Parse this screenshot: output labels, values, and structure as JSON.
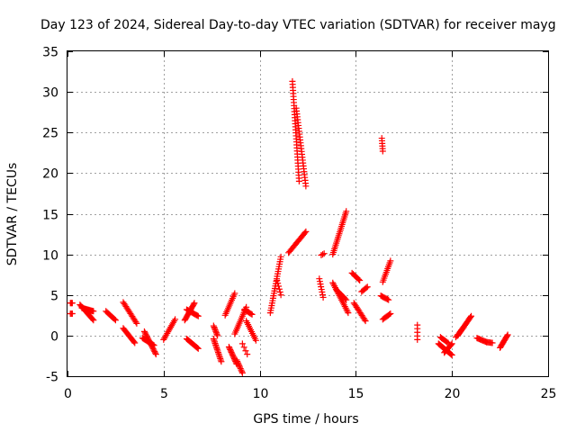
{
  "chart_data": {
    "type": "scatter",
    "title": "Day 123 of 2024, Sidereal Day-to-day VTEC variation (SDTVAR) for receiver mayg",
    "xlabel": "GPS time / hours",
    "ylabel": "SDTVAR / TECUs",
    "xlim": [
      0,
      25
    ],
    "ylim": [
      -5,
      35
    ],
    "xticks": [
      0,
      5,
      10,
      15,
      20,
      25
    ],
    "yticks": [
      -5,
      0,
      5,
      10,
      15,
      20,
      25,
      30,
      35
    ],
    "grid": true,
    "marker": "+",
    "color": "#ff0000",
    "tracks": [
      {
        "x0": 0.15,
        "x1": 0.25,
        "y0": 4.0,
        "y1": 4.0,
        "n": 4
      },
      {
        "x0": 0.15,
        "x1": 0.25,
        "y0": 2.7,
        "y1": 2.7,
        "n": 3
      },
      {
        "x0": 0.65,
        "x1": 1.35,
        "y0": 3.8,
        "y1": 1.9,
        "n": 16
      },
      {
        "x0": 0.75,
        "x1": 1.35,
        "y0": 3.4,
        "y1": 3.0,
        "n": 14
      },
      {
        "x0": 2.0,
        "x1": 2.5,
        "y0": 3.0,
        "y1": 1.9,
        "n": 10
      },
      {
        "x0": 2.9,
        "x1": 3.6,
        "y0": 4.1,
        "y1": 1.5,
        "n": 16
      },
      {
        "x0": 2.9,
        "x1": 3.5,
        "y0": 0.9,
        "y1": -0.9,
        "n": 14
      },
      {
        "x0": 4.0,
        "x1": 4.6,
        "y0": 0.5,
        "y1": -2.3,
        "n": 18
      },
      {
        "x0": 3.9,
        "x1": 4.5,
        "y0": -0.3,
        "y1": -1.2,
        "n": 14
      },
      {
        "x0": 5.0,
        "x1": 5.6,
        "y0": -0.5,
        "y1": 2.0,
        "n": 14
      },
      {
        "x0": 6.1,
        "x1": 6.6,
        "y0": 1.9,
        "y1": 4.0,
        "n": 16
      },
      {
        "x0": 6.2,
        "x1": 6.8,
        "y0": 3.2,
        "y1": 2.4,
        "n": 12
      },
      {
        "x0": 6.2,
        "x1": 6.8,
        "y0": -0.4,
        "y1": -1.6,
        "n": 14
      },
      {
        "x0": 7.6,
        "x1": 7.8,
        "y0": 1.2,
        "y1": 0.0,
        "n": 8
      },
      {
        "x0": 7.6,
        "x1": 8.0,
        "y0": -0.4,
        "y1": -3.2,
        "n": 16
      },
      {
        "x0": 8.4,
        "x1": 8.8,
        "y0": -1.4,
        "y1": -3.5,
        "n": 14
      },
      {
        "x0": 8.8,
        "x1": 9.1,
        "y0": -3.0,
        "y1": -4.6,
        "n": 10
      },
      {
        "x0": 8.2,
        "x1": 8.7,
        "y0": 2.5,
        "y1": 5.2,
        "n": 14
      },
      {
        "x0": 8.7,
        "x1": 9.3,
        "y0": 0.2,
        "y1": 3.5,
        "n": 16
      },
      {
        "x0": 9.2,
        "x1": 9.6,
        "y0": 3.2,
        "y1": 2.6,
        "n": 8
      },
      {
        "x0": 9.3,
        "x1": 9.8,
        "y0": 1.8,
        "y1": -0.6,
        "n": 12
      },
      {
        "x0": 9.1,
        "x1": 9.35,
        "y0": -1.0,
        "y1": -2.3,
        "n": 4
      },
      {
        "x0": 10.55,
        "x1": 11.1,
        "y0": 2.8,
        "y1": 9.7,
        "n": 24
      },
      {
        "x0": 10.9,
        "x1": 11.1,
        "y0": 6.8,
        "y1": 5.0,
        "n": 6
      },
      {
        "x0": 11.5,
        "x1": 12.4,
        "y0": 10.2,
        "y1": 12.8,
        "n": 18
      },
      {
        "x0": 11.7,
        "x1": 12.05,
        "y0": 31.3,
        "y1": 19.0,
        "n": 34
      },
      {
        "x0": 11.9,
        "x1": 12.4,
        "y0": 28.0,
        "y1": 18.4,
        "n": 28
      },
      {
        "x0": 13.2,
        "x1": 13.35,
        "y0": 9.9,
        "y1": 10.1,
        "n": 3
      },
      {
        "x0": 13.1,
        "x1": 13.3,
        "y0": 7.0,
        "y1": 4.7,
        "n": 8
      },
      {
        "x0": 13.8,
        "x1": 14.5,
        "y0": 10.0,
        "y1": 15.3,
        "n": 24
      },
      {
        "x0": 13.8,
        "x1": 14.6,
        "y0": 6.5,
        "y1": 2.8,
        "n": 20
      },
      {
        "x0": 14.0,
        "x1": 14.5,
        "y0": 5.6,
        "y1": 4.4,
        "n": 10
      },
      {
        "x0": 14.8,
        "x1": 15.2,
        "y0": 7.7,
        "y1": 6.8,
        "n": 8
      },
      {
        "x0": 14.9,
        "x1": 15.5,
        "y0": 4.0,
        "y1": 1.8,
        "n": 14
      },
      {
        "x0": 15.3,
        "x1": 15.6,
        "y0": 5.4,
        "y1": 6.0,
        "n": 6
      },
      {
        "x0": 16.35,
        "x1": 16.4,
        "y0": 24.3,
        "y1": 22.7,
        "n": 6
      },
      {
        "x0": 16.4,
        "x1": 16.8,
        "y0": 6.6,
        "y1": 9.2,
        "n": 12
      },
      {
        "x0": 16.3,
        "x1": 16.7,
        "y0": 4.9,
        "y1": 4.4,
        "n": 8
      },
      {
        "x0": 16.4,
        "x1": 16.8,
        "y0": 2.0,
        "y1": 2.7,
        "n": 8
      },
      {
        "x0": 18.2,
        "x1": 18.2,
        "y0": 1.3,
        "y1": -0.5,
        "n": 5
      },
      {
        "x0": 19.3,
        "x1": 20.0,
        "y0": -1.0,
        "y1": -2.4,
        "n": 18
      },
      {
        "x0": 19.4,
        "x1": 19.8,
        "y0": -0.2,
        "y1": -0.9,
        "n": 8
      },
      {
        "x0": 19.6,
        "x1": 20.0,
        "y0": -2.1,
        "y1": -1.0,
        "n": 10
      },
      {
        "x0": 20.3,
        "x1": 21.0,
        "y0": 0.0,
        "y1": 2.4,
        "n": 18
      },
      {
        "x0": 20.2,
        "x1": 20.6,
        "y0": -0.2,
        "y1": 1.0,
        "n": 8
      },
      {
        "x0": 21.3,
        "x1": 21.8,
        "y0": -0.3,
        "y1": -0.8,
        "n": 10
      },
      {
        "x0": 21.8,
        "x1": 22.1,
        "y0": -0.8,
        "y1": -0.9,
        "n": 6
      },
      {
        "x0": 22.5,
        "x1": 22.9,
        "y0": -1.5,
        "y1": 0.1,
        "n": 12
      }
    ]
  }
}
